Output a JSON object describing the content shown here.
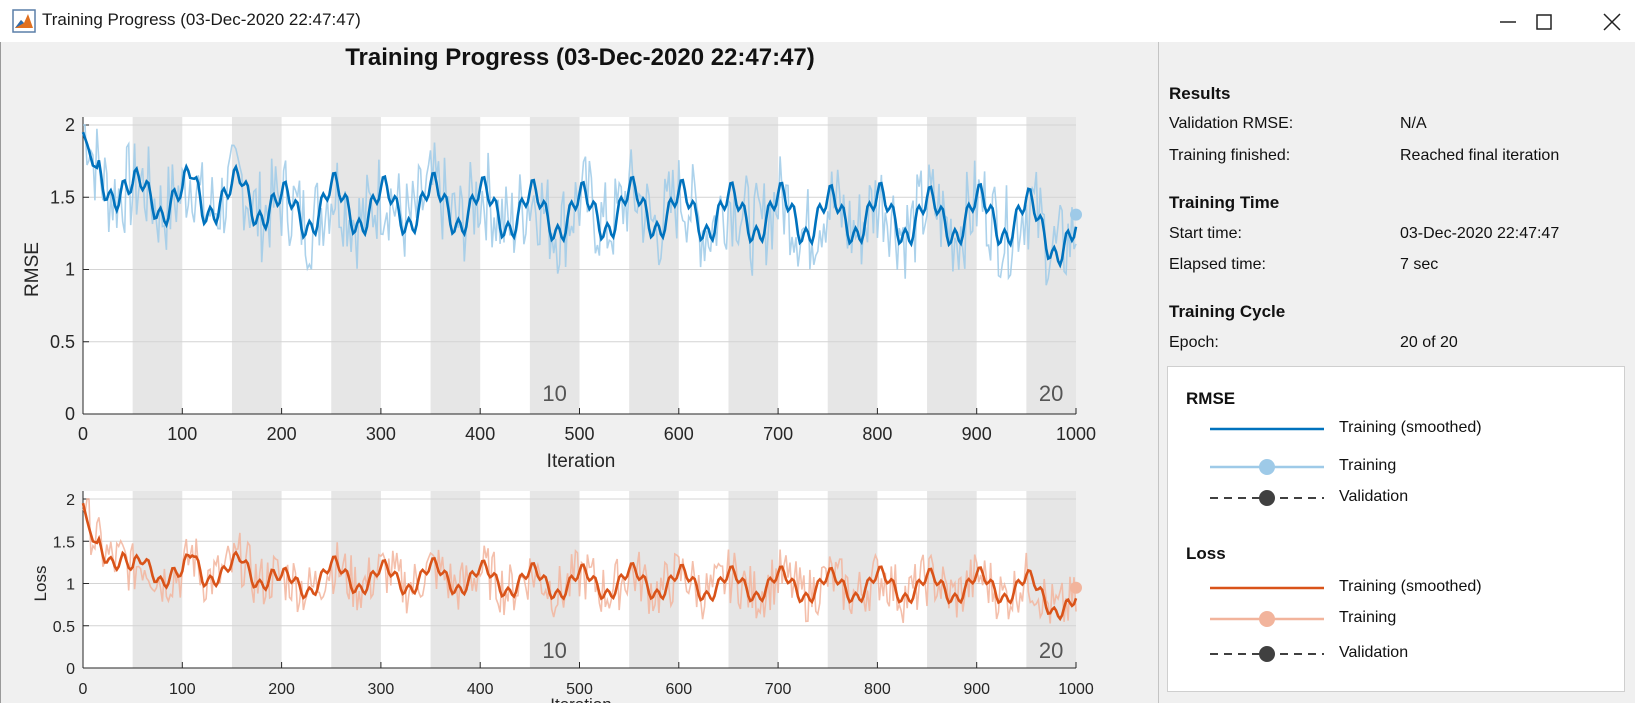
{
  "window": {
    "title": "Training Progress (03-Dec-2020 22:47:47)",
    "controls": [
      "minimize-icon",
      "maximize-icon",
      "close-icon"
    ]
  },
  "plot_title": "Training Progress (03-Dec-2020 22:47:47)",
  "results": {
    "heading": "Results",
    "rows": [
      {
        "label": "Validation RMSE:",
        "value": "N/A"
      },
      {
        "label": "Training finished:",
        "value": "Reached final iteration"
      }
    ]
  },
  "training_time": {
    "heading": "Training Time",
    "rows": [
      {
        "label": "Start time:",
        "value": "03-Dec-2020 22:47:47"
      },
      {
        "label": "Elapsed time:",
        "value": "7 sec"
      }
    ]
  },
  "training_cycle": {
    "heading": "Training Cycle",
    "rows": [
      {
        "label": "Epoch:",
        "value": "20 of 20"
      }
    ]
  },
  "legend": {
    "rmse_heading": "RMSE",
    "loss_heading": "Loss",
    "entries": [
      "Training (smoothed)",
      "Training",
      "Validation"
    ]
  },
  "colors": {
    "rmse_smoothed": "#0072bd",
    "rmse_raw": "#9ecae8",
    "loss_smoothed": "#d95319",
    "loss_raw": "#f2b49c",
    "validation": "#404040",
    "epoch_band": "#e6e6e6"
  },
  "chart_data": [
    {
      "type": "line",
      "xlabel": "Iteration",
      "ylabel": "RMSE",
      "xlim": [
        0,
        1000
      ],
      "ylim": [
        0,
        2
      ],
      "xticks": [
        0,
        100,
        200,
        300,
        400,
        500,
        600,
        700,
        800,
        900,
        1000
      ],
      "yticks": [
        0,
        0.5,
        1,
        1.5,
        2
      ],
      "ytick_labels": [
        "0",
        "0.5",
        "1",
        "1.5",
        "2"
      ],
      "epoch_labels": [
        {
          "epoch": 10,
          "iteration": 475
        },
        {
          "epoch": 20,
          "iteration": 975
        }
      ],
      "iterations_per_epoch": 50,
      "grid": true,
      "series": [
        {
          "name": "Training (smoothed)",
          "x": [
            0,
            5,
            10,
            20,
            30,
            40,
            50,
            60,
            70,
            80,
            90,
            100,
            110,
            120,
            130,
            140,
            150,
            160,
            170,
            180,
            190,
            200,
            250,
            300,
            350,
            400,
            450,
            500,
            550,
            600,
            650,
            700,
            750,
            800,
            850,
            900,
            950,
            1000
          ],
          "values": [
            1.95,
            1.85,
            1.72,
            1.68,
            1.62,
            1.55,
            1.45,
            1.52,
            1.55,
            1.5,
            1.48,
            1.42,
            1.6,
            1.5,
            1.52,
            1.48,
            1.45,
            1.55,
            1.5,
            1.48,
            1.45,
            1.38,
            1.45,
            1.42,
            1.45,
            1.42,
            1.4,
            1.38,
            1.42,
            1.4,
            1.38,
            1.38,
            1.36,
            1.38,
            1.35,
            1.37,
            1.35,
            1.15
          ]
        },
        {
          "name": "Training",
          "x": [
            1000
          ],
          "values": [
            1.38
          ]
        }
      ]
    },
    {
      "type": "line",
      "xlabel": "Iteration",
      "ylabel": "Loss",
      "xlim": [
        0,
        1000
      ],
      "ylim": [
        0,
        2
      ],
      "xticks": [
        0,
        100,
        200,
        300,
        400,
        500,
        600,
        700,
        800,
        900,
        1000
      ],
      "yticks": [
        0,
        0.5,
        1,
        1.5,
        2
      ],
      "ytick_labels": [
        "0",
        "0.5",
        "1",
        "1.5",
        "2"
      ],
      "epoch_labels": [
        {
          "epoch": 10,
          "iteration": 475
        },
        {
          "epoch": 20,
          "iteration": 975
        }
      ],
      "iterations_per_epoch": 50,
      "grid": true,
      "series": [
        {
          "name": "Training (smoothed)",
          "x": [
            0,
            5,
            10,
            20,
            30,
            40,
            50,
            60,
            70,
            80,
            90,
            100,
            110,
            120,
            130,
            140,
            150,
            160,
            170,
            180,
            190,
            200,
            250,
            300,
            350,
            400,
            450,
            500,
            550,
            600,
            650,
            700,
            750,
            800,
            850,
            900,
            950,
            1000
          ],
          "values": [
            1.95,
            1.7,
            1.5,
            1.45,
            1.38,
            1.3,
            1.05,
            1.2,
            1.22,
            1.15,
            1.12,
            1.0,
            1.3,
            1.15,
            1.18,
            1.12,
            1.1,
            1.22,
            1.15,
            1.12,
            1.1,
            0.95,
            1.1,
            1.05,
            1.08,
            1.05,
            1.02,
            1.0,
            1.02,
            1.0,
            0.98,
            0.98,
            0.96,
            0.98,
            0.95,
            0.97,
            0.95,
            0.68
          ]
        },
        {
          "name": "Training",
          "x": [
            1000
          ],
          "values": [
            0.95
          ]
        }
      ]
    }
  ]
}
